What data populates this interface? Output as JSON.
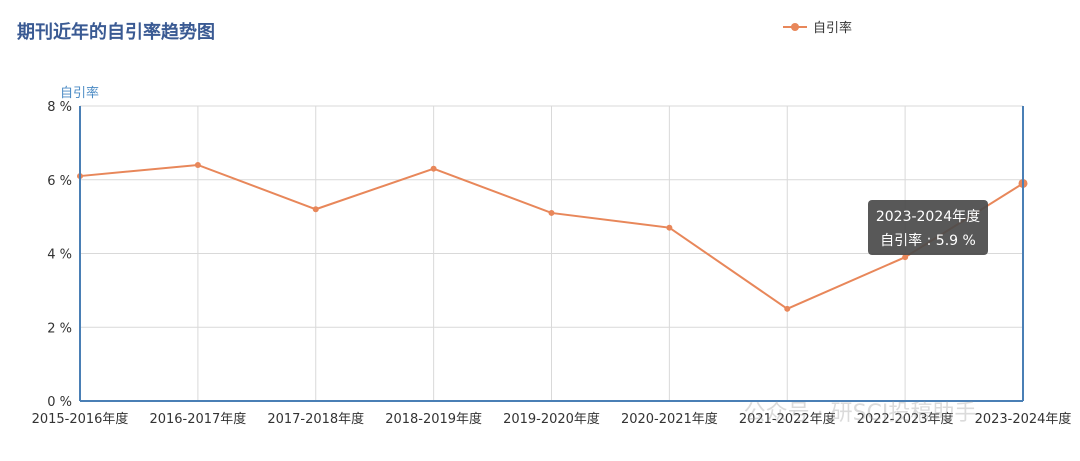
{
  "chart_data": {
    "type": "line",
    "title": "期刊近年的自引率趋势图",
    "y_axis_label": "自引率",
    "categories": [
      "2015-2016年度",
      "2016-2017年度",
      "2017-2018年度",
      "2018-2019年度",
      "2019-2020年度",
      "2020-2021年度",
      "2021-2022年度",
      "2022-2023年度",
      "2023-2024年度"
    ],
    "series": [
      {
        "name": "自引率",
        "color": "#e8875a",
        "values": [
          6.1,
          6.4,
          5.2,
          6.3,
          5.1,
          4.7,
          2.5,
          3.9,
          5.9
        ]
      }
    ],
    "ylim": [
      0,
      8
    ],
    "yticks": [
      {
        "value": 0,
        "label": "0 %"
      },
      {
        "value": 2,
        "label": "2 %"
      },
      {
        "value": 4,
        "label": "4 %"
      },
      {
        "value": 6,
        "label": "6 %"
      },
      {
        "value": 8,
        "label": "8 %"
      }
    ],
    "grid": true,
    "legend": "top-right",
    "tooltip": {
      "title": "2023-2024年度",
      "text": "自引率 : 5.9 %"
    },
    "watermark": "公众号 · 研SCI投稿助手"
  }
}
